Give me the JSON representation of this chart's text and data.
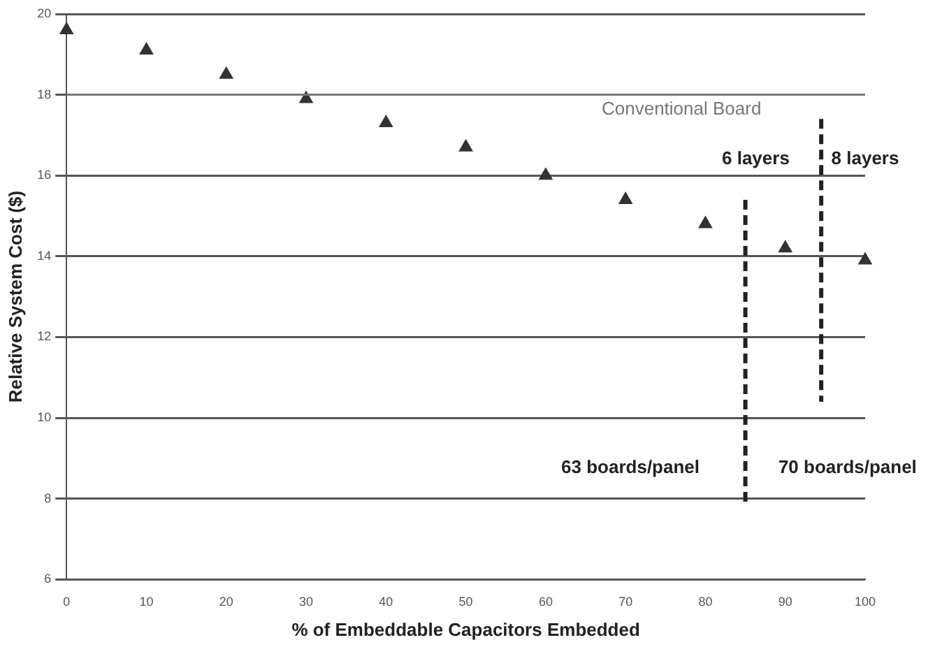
{
  "chart_data": {
    "type": "scatter",
    "xlabel": "% of Embeddable Capacitors Embedded",
    "ylabel": "Relative System Cost ($)",
    "xlim": [
      0,
      100
    ],
    "xticks": [
      0,
      10,
      20,
      30,
      40,
      50,
      60,
      70,
      80,
      90,
      100
    ],
    "ylim": [
      6,
      20
    ],
    "yticks": [
      6,
      8,
      10,
      12,
      14,
      16,
      18,
      20
    ],
    "grid": "y",
    "series": [
      {
        "color": "#333333",
        "marker": "triangle",
        "x": [
          0,
          10,
          20,
          30,
          40,
          50,
          60,
          70,
          80,
          90,
          100
        ],
        "values": [
          19.6,
          19.1,
          18.5,
          17.9,
          17.3,
          16.7,
          16.0,
          15.4,
          14.8,
          14.2,
          13.9
        ]
      },
      {
        "type": "line",
        "color": "#222222",
        "line_style": "dashed",
        "x": [
          85,
          85
        ],
        "values": [
          15.4,
          7.8
        ]
      },
      {
        "type": "line",
        "color": "#222222",
        "line_style": "dashed",
        "x": [
          94.5,
          94.5
        ],
        "values": [
          17.4,
          10.4
        ]
      }
    ],
    "ref_lines": [
      {
        "axis": "y",
        "value": 18,
        "label": "Conventional Board",
        "color": "#777777"
      }
    ],
    "annotations": [
      "6 layers",
      "8 layers",
      "63 boards/panel",
      "70 boards/panel"
    ]
  }
}
